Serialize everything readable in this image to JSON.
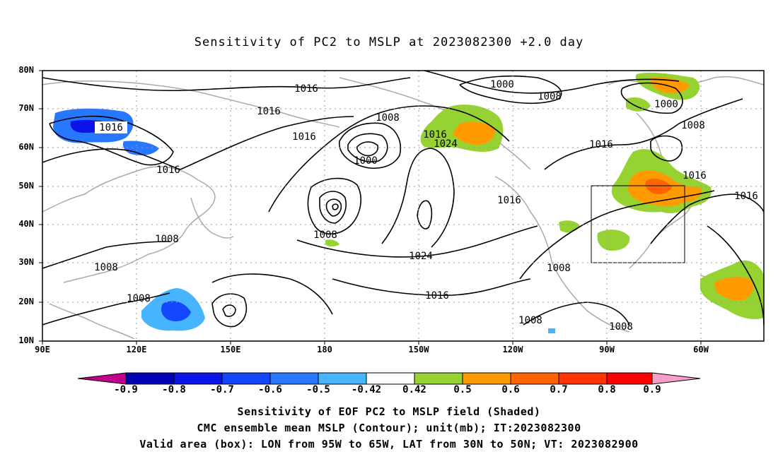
{
  "title": "Sensitivity of PC2 to MSLP at 2023082300 +2.0 day",
  "axes": {
    "y_labels": [
      "80N",
      "70N",
      "60N",
      "50N",
      "40N",
      "30N",
      "20N",
      "10N"
    ],
    "x_labels": [
      "90E",
      "120E",
      "150E",
      "180",
      "150W",
      "120W",
      "90W",
      "60W"
    ]
  },
  "contour_labels": [
    "1016",
    "1016",
    "1016",
    "1016",
    "1016",
    "1008",
    "1000",
    "1016",
    "1024",
    "1000",
    "1008",
    "1000",
    "1008",
    "1016",
    "1016",
    "1016",
    "1016",
    "1008",
    "1024",
    "1008",
    "1008",
    "1008",
    "1016",
    "1008",
    "1008",
    "1008"
  ],
  "colorbar": {
    "labels": [
      "-0.9",
      "-0.8",
      "-0.7",
      "-0.6",
      "-0.5",
      "-0.42",
      "0.42",
      "0.5",
      "0.6",
      "0.7",
      "0.8",
      "0.9"
    ],
    "colors": [
      "#c0008c",
      "#0000b4",
      "#0a14e6",
      "#1446ff",
      "#2878ff",
      "#46b4ff",
      "#00c8ff",
      "#ffffff",
      "#96d232",
      "#ff9b00",
      "#ff6400",
      "#ff3200",
      "#ff0000",
      "#f5a0c8"
    ]
  },
  "captions": [
    "Sensitivity of EOF PC2 to MSLP field (Shaded)",
    "CMC ensemble mean MSLP (Contour); unit(mb); IT:2023082300",
    "Valid area (box): LON from 95W to 65W, LAT from 30N to 50N; VT: 2023082900"
  ]
}
